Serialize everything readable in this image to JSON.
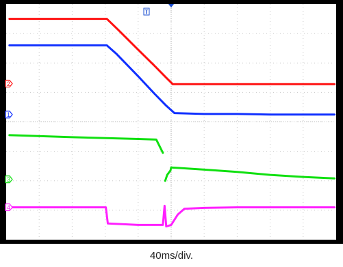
{
  "chart_data": {
    "type": "line",
    "title": "",
    "xlabel": "40ms/div.",
    "ylabel": "",
    "grid": true,
    "x_divisions": 10,
    "y_divisions": 8,
    "x_range_divs": [
      0,
      10
    ],
    "y_range_divs": [
      0,
      8
    ],
    "trigger_marker": {
      "label": "T",
      "x_div": 5.0,
      "color": "#1e50d2"
    },
    "channels": [
      {
        "id": "2",
        "color": "#ff1010",
        "ground_div": 5.3
      },
      {
        "id": "1",
        "color": "#1030ff",
        "ground_div": 4.25
      },
      {
        "id": "3",
        "color": "#10e010",
        "ground_div": 2.05
      },
      {
        "id": "4",
        "color": "#ff20ff",
        "ground_div": 1.1
      }
    ],
    "series": [
      {
        "channel": "2",
        "color": "#ff1010",
        "points": [
          [
            0.1,
            7.5
          ],
          [
            3.05,
            7.5
          ],
          [
            3.4,
            7.12
          ],
          [
            4.0,
            6.45
          ],
          [
            4.5,
            5.9
          ],
          [
            4.85,
            5.5
          ],
          [
            5.05,
            5.28
          ],
          [
            6.0,
            5.28
          ],
          [
            7.0,
            5.28
          ],
          [
            8.0,
            5.28
          ],
          [
            9.0,
            5.28
          ],
          [
            9.95,
            5.28
          ]
        ]
      },
      {
        "channel": "1",
        "color": "#1030ff",
        "points": [
          [
            0.1,
            6.6
          ],
          [
            3.05,
            6.6
          ],
          [
            3.35,
            6.3
          ],
          [
            4.0,
            5.55
          ],
          [
            4.5,
            4.95
          ],
          [
            4.85,
            4.55
          ],
          [
            5.1,
            4.3
          ],
          [
            6.0,
            4.27
          ],
          [
            7.0,
            4.27
          ],
          [
            8.0,
            4.25
          ],
          [
            9.0,
            4.25
          ],
          [
            9.95,
            4.25
          ]
        ]
      },
      {
        "channel": "3",
        "color": "#10e010",
        "segments": [
          [
            [
              0.1,
              3.55
            ],
            [
              2.0,
              3.48
            ],
            [
              4.0,
              3.42
            ],
            [
              4.55,
              3.4
            ],
            [
              4.75,
              2.95
            ]
          ],
          [
            [
              4.82,
              2.0
            ],
            [
              4.88,
              2.2
            ],
            [
              4.98,
              2.35
            ],
            [
              5.0,
              2.45
            ],
            [
              6.0,
              2.38
            ],
            [
              7.0,
              2.3
            ],
            [
              8.0,
              2.2
            ],
            [
              9.0,
              2.13
            ],
            [
              9.95,
              2.08
            ]
          ]
        ]
      },
      {
        "channel": "4",
        "color": "#ff20ff",
        "points": [
          [
            0.1,
            1.1
          ],
          [
            3.02,
            1.1
          ],
          [
            3.08,
            0.55
          ],
          [
            4.0,
            0.5
          ],
          [
            4.75,
            0.5
          ],
          [
            4.8,
            1.15
          ],
          [
            4.85,
            0.45
          ],
          [
            5.0,
            0.5
          ],
          [
            5.2,
            0.85
          ],
          [
            5.4,
            1.05
          ],
          [
            6.0,
            1.08
          ],
          [
            7.0,
            1.1
          ],
          [
            8.0,
            1.1
          ],
          [
            9.0,
            1.1
          ],
          [
            9.95,
            1.1
          ]
        ]
      }
    ]
  }
}
